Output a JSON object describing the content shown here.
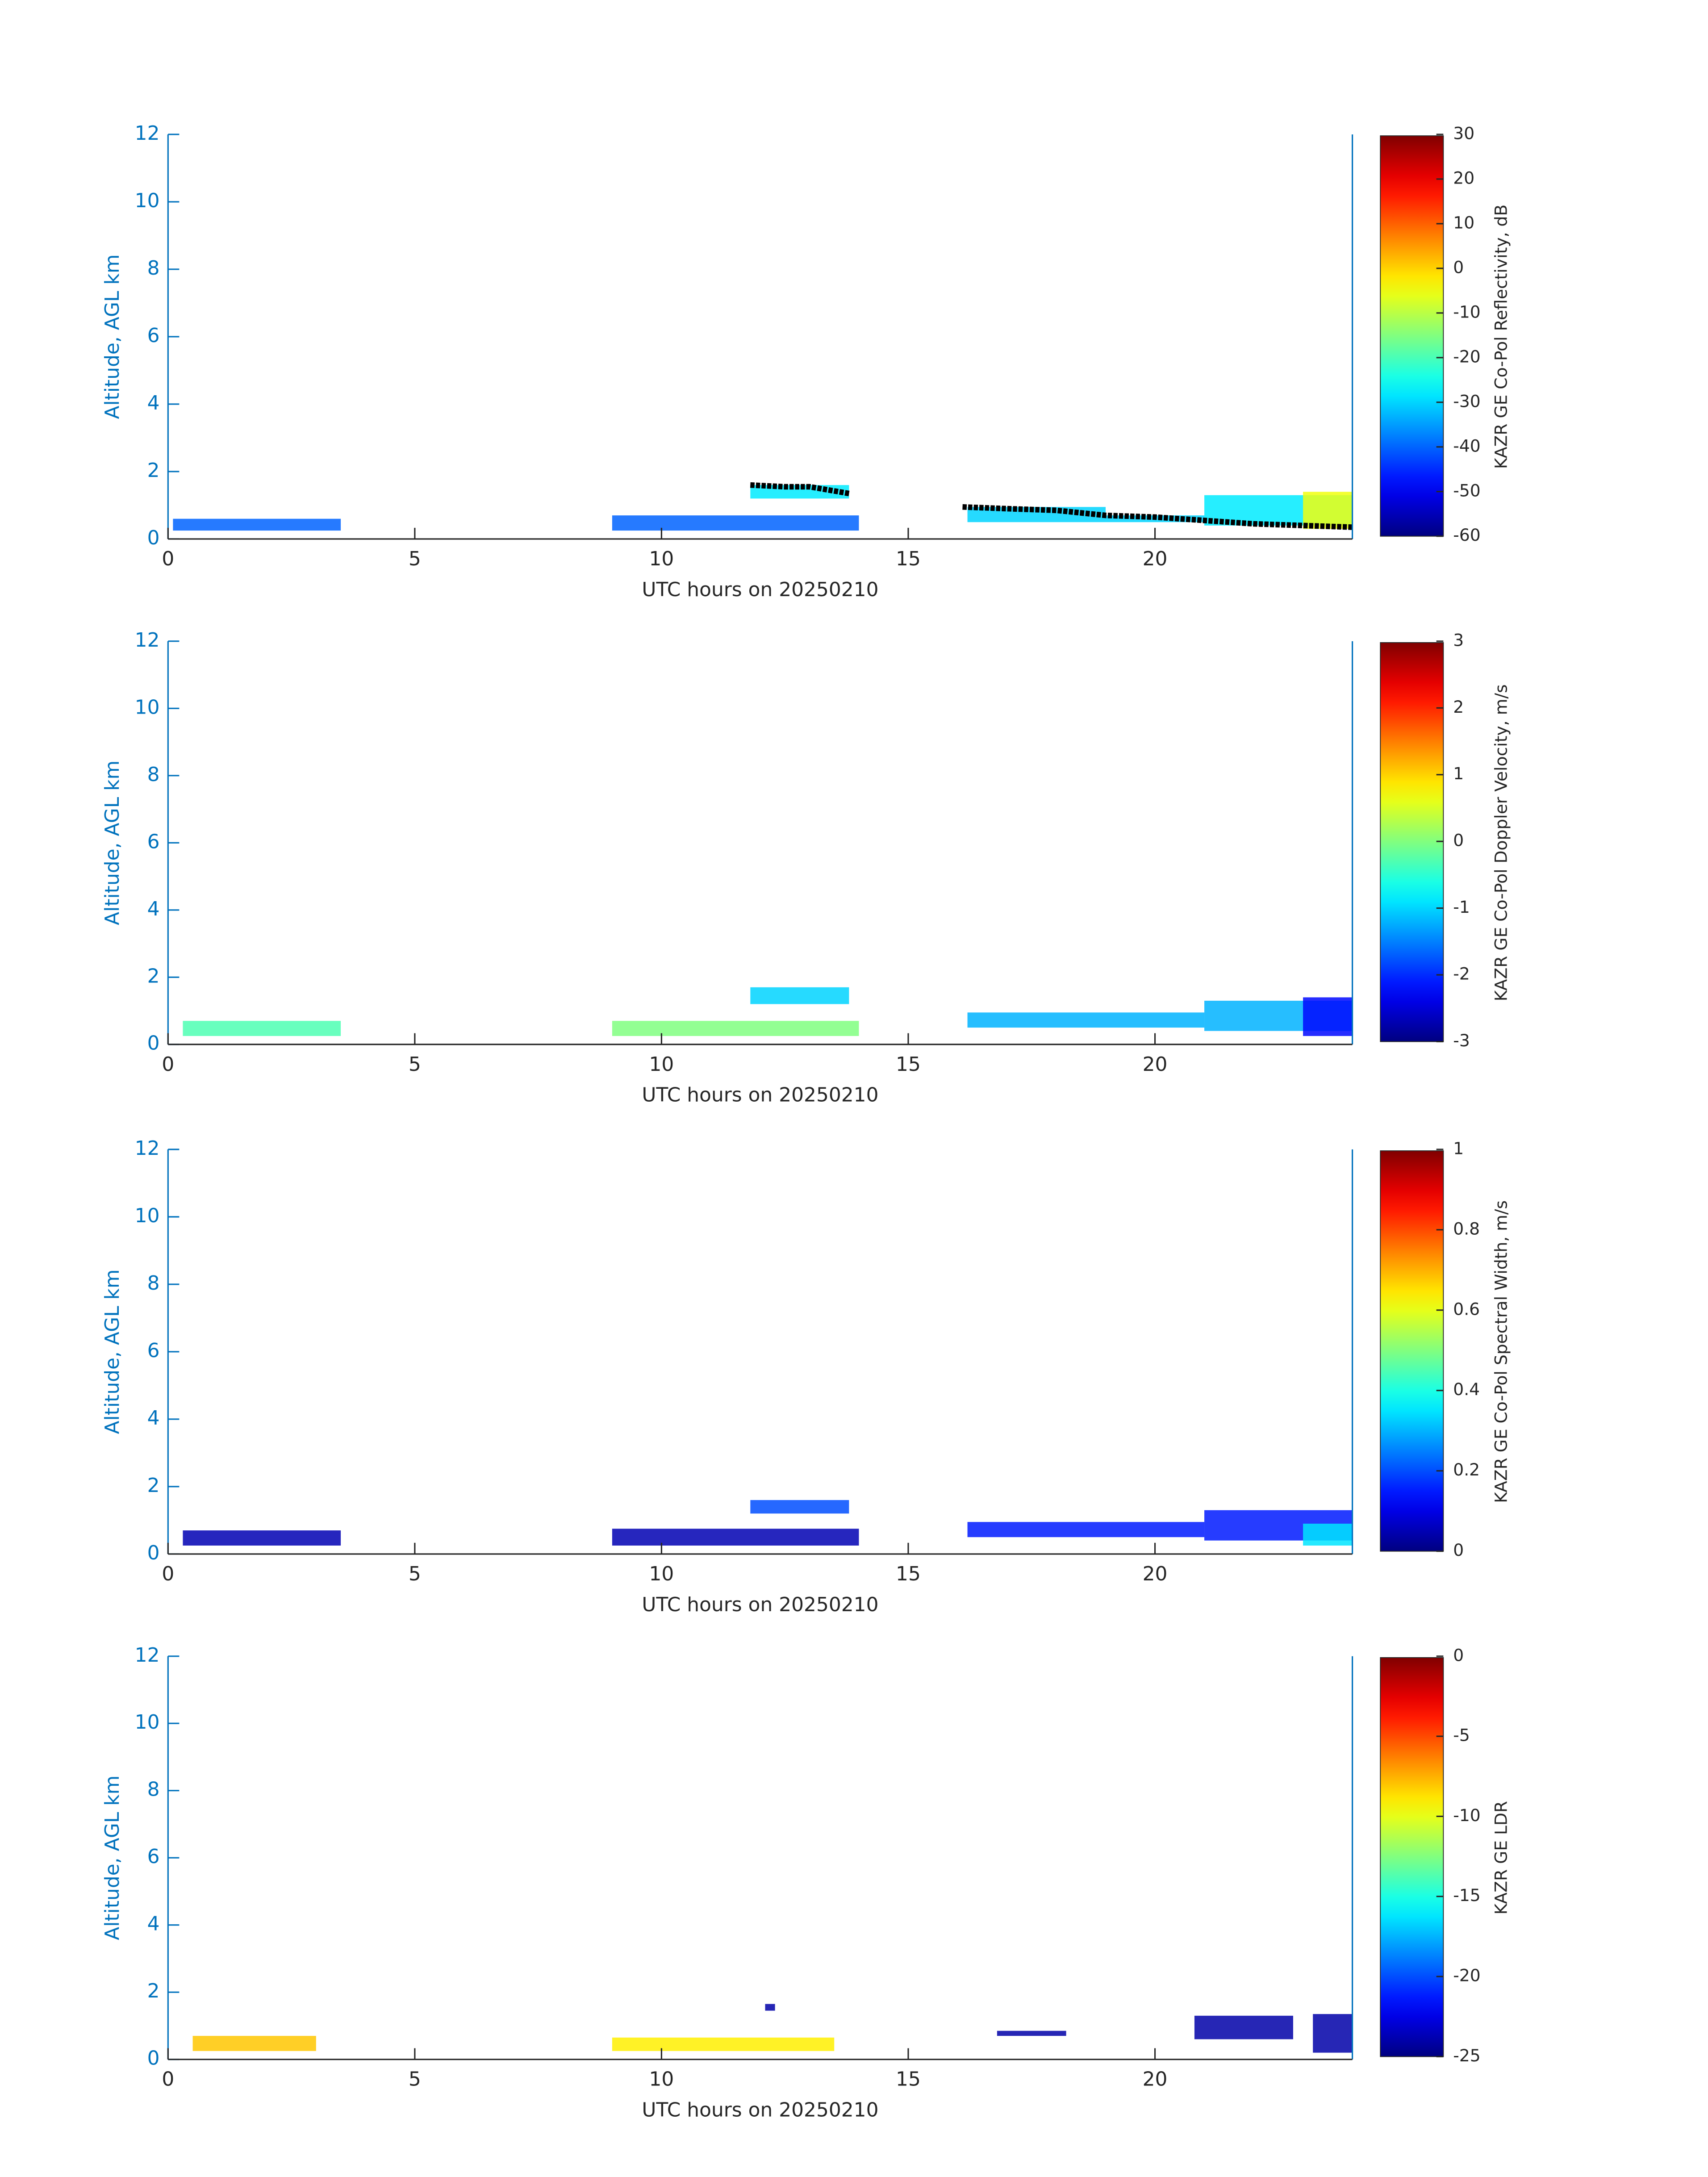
{
  "chart_data": [
    {
      "type": "heatmap",
      "xlabel": "UTC hours on 20250210",
      "ylabel": "Altitude, AGL km",
      "xlim": [
        0,
        24
      ],
      "xticks": [
        0,
        5,
        10,
        15,
        20
      ],
      "ylim": [
        0,
        12
      ],
      "yticks": [
        0,
        2,
        4,
        6,
        8,
        10,
        12
      ],
      "colorbar": {
        "label": "KAZR GE Co-Pol Reflectivity, dB",
        "clim": [
          -60,
          30
        ],
        "ticks": [
          -60,
          -50,
          -40,
          -30,
          -20,
          -10,
          0,
          10,
          20,
          30
        ],
        "colormap": "jet"
      },
      "regions": [
        {
          "x": [
            0.1,
            3.5
          ],
          "y": [
            0.25,
            0.6
          ],
          "value": -40
        },
        {
          "x": [
            9,
            14
          ],
          "y": [
            0.25,
            0.7
          ],
          "value": -40
        },
        {
          "x": [
            11.8,
            13.8
          ],
          "y": [
            1.2,
            1.6
          ],
          "value": -28
        },
        {
          "x": [
            16.2,
            19
          ],
          "y": [
            0.5,
            0.95
          ],
          "value": -30
        },
        {
          "x": [
            19,
            21
          ],
          "y": [
            0.5,
            0.7
          ],
          "value": -30
        },
        {
          "x": [
            21,
            24
          ],
          "y": [
            0.4,
            1.3
          ],
          "value": -28
        },
        {
          "x": [
            23,
            24
          ],
          "y": [
            0.3,
            1.4
          ],
          "value": -5
        }
      ],
      "series": [
        {
          "color": "#000000",
          "x": [
            11.8,
            12.5,
            13,
            13.8,
            15,
            16.1,
            17,
            18,
            19,
            20,
            21,
            22,
            23,
            24
          ],
          "values": [
            1.6,
            1.55,
            1.55,
            1.35,
            null,
            0.95,
            0.9,
            0.85,
            0.7,
            0.65,
            0.55,
            0.45,
            0.4,
            0.35
          ]
        }
      ]
    },
    {
      "type": "heatmap",
      "xlabel": "UTC hours on 20250210",
      "ylabel": "Altitude, AGL km",
      "xlim": [
        0,
        24
      ],
      "xticks": [
        0,
        5,
        10,
        15,
        20
      ],
      "ylim": [
        0,
        12
      ],
      "yticks": [
        0,
        2,
        4,
        6,
        8,
        10,
        12
      ],
      "colorbar": {
        "label": "KAZR GE Co-Pol Doppler Velocity, m/s",
        "clim": [
          -3,
          3
        ],
        "ticks": [
          -3,
          -2,
          -1,
          0,
          1,
          2,
          3
        ],
        "colormap": "jet"
      },
      "regions": [
        {
          "x": [
            0.3,
            3.5
          ],
          "y": [
            0.25,
            0.7
          ],
          "value": -0.3
        },
        {
          "x": [
            9,
            14
          ],
          "y": [
            0.25,
            0.7
          ],
          "value": 0
        },
        {
          "x": [
            11.8,
            13.8
          ],
          "y": [
            1.2,
            1.7
          ],
          "value": -1
        },
        {
          "x": [
            16.2,
            21
          ],
          "y": [
            0.5,
            0.95
          ],
          "value": -1.2
        },
        {
          "x": [
            21,
            24
          ],
          "y": [
            0.4,
            1.3
          ],
          "value": -1.2
        },
        {
          "x": [
            23,
            24
          ],
          "y": [
            0.25,
            1.4
          ],
          "value": -2.2
        }
      ]
    },
    {
      "type": "heatmap",
      "xlabel": "UTC hours on 20250210",
      "ylabel": "Altitude, AGL km",
      "xlim": [
        0,
        24
      ],
      "xticks": [
        0,
        5,
        10,
        15,
        20
      ],
      "ylim": [
        0,
        12
      ],
      "yticks": [
        0,
        2,
        4,
        6,
        8,
        10,
        12
      ],
      "colorbar": {
        "label": "KAZR GE Co-Pol Spectral Width, m/s",
        "clim": [
          0,
          1
        ],
        "ticks": [
          0,
          0.2,
          0.4,
          0.6,
          0.8,
          1
        ],
        "colormap": "jet"
      },
      "regions": [
        {
          "x": [
            0.3,
            3.5
          ],
          "y": [
            0.25,
            0.7
          ],
          "value": 0.05
        },
        {
          "x": [
            9,
            14
          ],
          "y": [
            0.25,
            0.75
          ],
          "value": 0.05
        },
        {
          "x": [
            11.8,
            13.8
          ],
          "y": [
            1.2,
            1.6
          ],
          "value": 0.2
        },
        {
          "x": [
            16.2,
            21
          ],
          "y": [
            0.5,
            0.95
          ],
          "value": 0.15
        },
        {
          "x": [
            21,
            24
          ],
          "y": [
            0.4,
            1.3
          ],
          "value": 0.15
        },
        {
          "x": [
            23,
            24
          ],
          "y": [
            0.25,
            0.9
          ],
          "value": 0.35
        }
      ]
    },
    {
      "type": "heatmap",
      "xlabel": "UTC hours on 20250210",
      "ylabel": "Altitude, AGL km",
      "xlim": [
        0,
        24
      ],
      "xticks": [
        0,
        5,
        10,
        15,
        20
      ],
      "ylim": [
        0,
        12
      ],
      "yticks": [
        0,
        2,
        4,
        6,
        8,
        10,
        12
      ],
      "colorbar": {
        "label": "KAZR GE LDR",
        "clim": [
          -25,
          0
        ],
        "ticks": [
          -25,
          -20,
          -15,
          -10,
          -5,
          0
        ],
        "colormap": "jet"
      },
      "regions": [
        {
          "x": [
            0.5,
            3
          ],
          "y": [
            0.25,
            0.7
          ],
          "value": -8
        },
        {
          "x": [
            9,
            13.5
          ],
          "y": [
            0.25,
            0.65
          ],
          "value": -9
        },
        {
          "x": [
            12.1,
            12.3
          ],
          "y": [
            1.45,
            1.65
          ],
          "value": -24
        },
        {
          "x": [
            16.8,
            18.2
          ],
          "y": [
            0.7,
            0.85
          ],
          "value": -24
        },
        {
          "x": [
            20.8,
            22.8
          ],
          "y": [
            0.6,
            1.3
          ],
          "value": -24
        },
        {
          "x": [
            23.2,
            24
          ],
          "y": [
            0.2,
            1.35
          ],
          "value": -24
        }
      ]
    }
  ]
}
